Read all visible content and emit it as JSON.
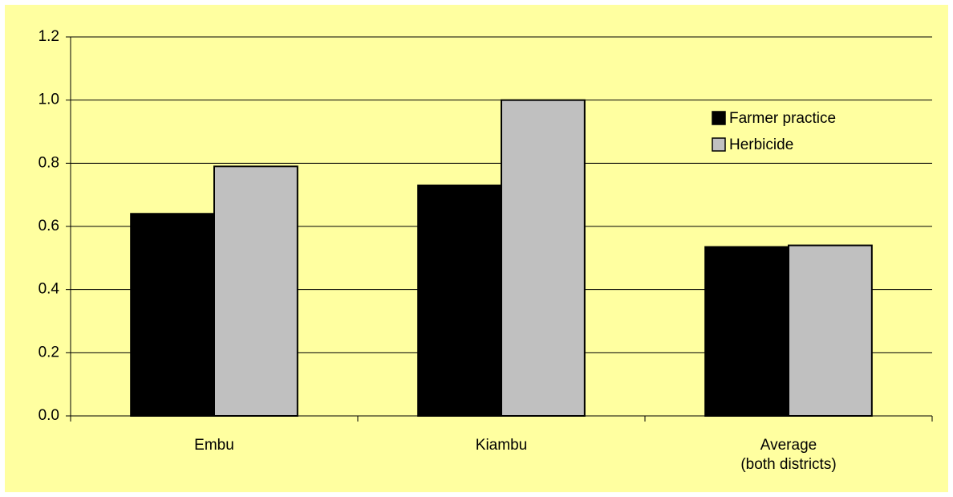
{
  "chart_data": {
    "type": "bar",
    "categories": [
      "Embu",
      "Kiambu",
      "Average\n(both districts)"
    ],
    "series": [
      {
        "name": "Farmer practice",
        "color": "#000000",
        "values": [
          0.64,
          0.73,
          0.535
        ]
      },
      {
        "name": "Herbicide",
        "color": "#c0c0c0",
        "values": [
          0.79,
          1.0,
          0.54
        ]
      }
    ],
    "ylim": [
      0,
      1.2
    ],
    "yticks": [
      {
        "value": 0,
        "label": "0.0"
      },
      0.2,
      0.4,
      0.6,
      0.8,
      {
        "value": 1,
        "label": "1.0"
      },
      1.2
    ],
    "grid": true,
    "legend": "upper right",
    "background": "#ffffa0"
  }
}
